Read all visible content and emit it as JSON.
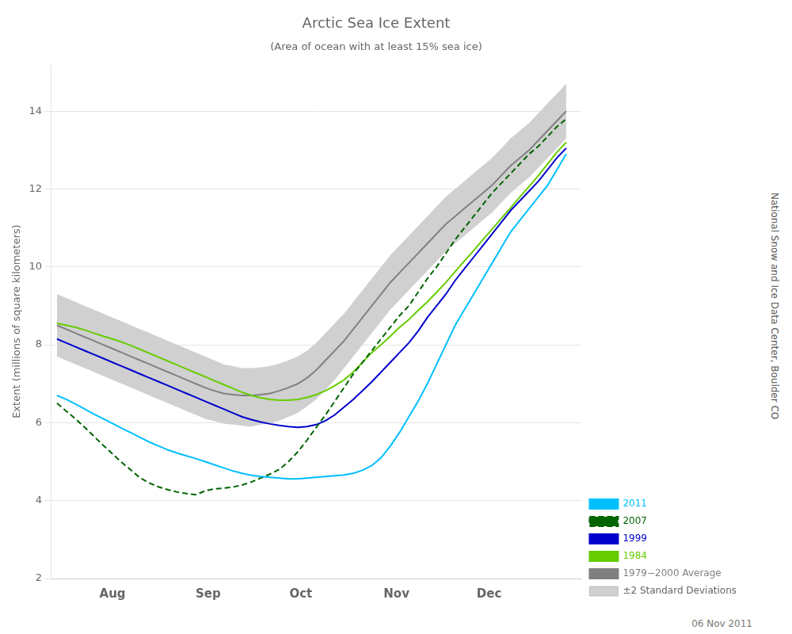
{
  "chart_data": {
    "type": "line",
    "title": "Arctic Sea Ice Extent",
    "subtitle": "(Area of ocean with at least 15% sea ice)",
    "ylabel": "Extent (millions of square kilometers)",
    "annotations": [
      "National Snow and Ice Data Center, Boulder CO",
      "06 Nov 2011"
    ],
    "x": [
      0,
      3,
      6,
      9,
      12,
      15,
      18,
      21,
      24,
      27,
      30,
      33,
      36,
      39,
      42,
      45,
      48,
      51,
      54,
      57,
      60,
      63,
      66,
      69,
      72,
      75,
      78,
      81,
      84,
      87,
      90,
      93,
      96,
      99,
      102,
      105,
      108,
      111,
      114,
      117,
      120,
      123,
      126,
      129,
      132,
      135,
      138,
      141,
      144,
      147,
      150,
      153,
      156,
      159,
      162,
      165
    ],
    "xlim": [
      -2,
      170
    ],
    "xticks": [
      {
        "value": 18,
        "label": "Aug"
      },
      {
        "value": 49,
        "label": "Sep"
      },
      {
        "value": 79,
        "label": "Oct"
      },
      {
        "value": 110,
        "label": "Nov"
      },
      {
        "value": 140,
        "label": "Dec"
      }
    ],
    "ylim": [
      2,
      15.2
    ],
    "yticks": [
      2,
      4,
      6,
      8,
      10,
      12,
      14
    ],
    "grid": "y",
    "legend": "lower right",
    "series": [
      {
        "name": "2011",
        "color": "#00bfff",
        "line_style": "solid",
        "values": [
          6.7,
          6.6,
          6.48,
          6.35,
          6.22,
          6.1,
          5.98,
          5.86,
          5.74,
          5.62,
          5.5,
          5.4,
          5.3,
          5.22,
          5.15,
          5.08,
          5.0,
          4.92,
          4.84,
          4.76,
          4.7,
          4.65,
          4.62,
          4.6,
          4.58,
          4.56,
          4.56,
          4.58,
          4.6,
          4.62,
          4.64,
          4.66,
          4.7,
          4.78,
          4.9,
          5.1,
          5.4,
          5.75,
          6.15,
          6.55,
          7.0,
          7.5,
          8.0,
          8.5,
          8.9,
          9.3,
          9.7,
          10.1,
          10.5,
          10.9,
          11.2,
          11.5,
          11.8,
          12.1,
          12.5,
          12.9
        ]
      },
      {
        "name": "2007",
        "color": "#006400",
        "line_style": "dashed",
        "values": [
          6.5,
          6.3,
          6.1,
          5.88,
          5.65,
          5.42,
          5.2,
          4.98,
          4.78,
          4.58,
          4.45,
          4.35,
          4.28,
          4.22,
          4.18,
          4.15,
          4.25,
          4.3,
          4.32,
          4.35,
          4.4,
          4.48,
          4.58,
          4.68,
          4.8,
          5.0,
          5.25,
          5.55,
          5.88,
          6.2,
          6.55,
          6.9,
          7.25,
          7.55,
          7.85,
          8.15,
          8.45,
          8.75,
          9.0,
          9.35,
          9.7,
          10.0,
          10.35,
          10.7,
          11.0,
          11.3,
          11.6,
          11.9,
          12.15,
          12.4,
          12.65,
          12.9,
          13.1,
          13.35,
          13.6,
          13.8
        ]
      },
      {
        "name": "1999",
        "color": "#0000cd",
        "line_style": "solid",
        "values": [
          8.15,
          8.05,
          7.95,
          7.85,
          7.75,
          7.65,
          7.55,
          7.45,
          7.35,
          7.25,
          7.15,
          7.05,
          6.95,
          6.85,
          6.75,
          6.65,
          6.55,
          6.45,
          6.35,
          6.25,
          6.15,
          6.08,
          6.02,
          5.97,
          5.93,
          5.9,
          5.88,
          5.9,
          5.95,
          6.05,
          6.2,
          6.4,
          6.6,
          6.82,
          7.05,
          7.3,
          7.55,
          7.8,
          8.05,
          8.35,
          8.7,
          9.0,
          9.3,
          9.65,
          9.95,
          10.25,
          10.55,
          10.85,
          11.15,
          11.45,
          11.7,
          11.95,
          12.2,
          12.5,
          12.8,
          13.05
        ]
      },
      {
        "name": "1984",
        "color": "#66cc00",
        "line_style": "solid",
        "values": [
          8.55,
          8.5,
          8.45,
          8.38,
          8.3,
          8.22,
          8.15,
          8.07,
          7.98,
          7.88,
          7.78,
          7.68,
          7.58,
          7.48,
          7.38,
          7.28,
          7.18,
          7.08,
          6.98,
          6.88,
          6.78,
          6.7,
          6.64,
          6.6,
          6.58,
          6.58,
          6.6,
          6.65,
          6.72,
          6.82,
          6.95,
          7.1,
          7.3,
          7.55,
          7.8,
          8.0,
          8.22,
          8.45,
          8.65,
          8.88,
          9.1,
          9.35,
          9.6,
          9.88,
          10.15,
          10.42,
          10.7,
          10.97,
          11.25,
          11.52,
          11.8,
          12.07,
          12.35,
          12.65,
          12.95,
          13.2
        ]
      },
      {
        "name": "1979−2000 Average",
        "color": "#808080",
        "line_style": "solid",
        "values": [
          8.5,
          8.4,
          8.3,
          8.2,
          8.1,
          8.0,
          7.9,
          7.8,
          7.7,
          7.6,
          7.5,
          7.4,
          7.3,
          7.2,
          7.1,
          7.0,
          6.9,
          6.82,
          6.75,
          6.72,
          6.7,
          6.7,
          6.72,
          6.75,
          6.82,
          6.9,
          7.0,
          7.15,
          7.35,
          7.6,
          7.85,
          8.1,
          8.4,
          8.7,
          9.0,
          9.3,
          9.6,
          9.85,
          10.1,
          10.35,
          10.6,
          10.85,
          11.1,
          11.3,
          11.5,
          11.7,
          11.9,
          12.1,
          12.35,
          12.6,
          12.8,
          13.0,
          13.25,
          13.5,
          13.75,
          14.0
        ]
      },
      {
        "name": "±2 Standard Deviations",
        "type": "area",
        "color": "#d0d0d0",
        "lower": [
          7.7,
          7.6,
          7.5,
          7.4,
          7.3,
          7.2,
          7.1,
          7.0,
          6.9,
          6.8,
          6.7,
          6.6,
          6.5,
          6.4,
          6.3,
          6.2,
          6.1,
          6.04,
          5.98,
          5.95,
          5.92,
          5.9,
          5.95,
          5.98,
          6.05,
          6.15,
          6.25,
          6.42,
          6.6,
          6.85,
          7.1,
          7.4,
          7.7,
          8.0,
          8.3,
          8.6,
          8.9,
          9.15,
          9.4,
          9.65,
          9.9,
          10.15,
          10.4,
          10.6,
          10.8,
          11.0,
          11.2,
          11.4,
          11.65,
          11.9,
          12.1,
          12.3,
          12.55,
          12.8,
          13.05,
          13.3
        ],
        "upper": [
          9.3,
          9.2,
          9.1,
          9.0,
          8.9,
          8.8,
          8.7,
          8.6,
          8.5,
          8.4,
          8.3,
          8.2,
          8.1,
          8.0,
          7.9,
          7.8,
          7.7,
          7.6,
          7.5,
          7.45,
          7.4,
          7.4,
          7.42,
          7.45,
          7.52,
          7.6,
          7.7,
          7.85,
          8.05,
          8.3,
          8.55,
          8.8,
          9.1,
          9.4,
          9.7,
          10.0,
          10.3,
          10.55,
          10.8,
          11.05,
          11.3,
          11.55,
          11.8,
          12.0,
          12.2,
          12.4,
          12.6,
          12.8,
          13.05,
          13.3,
          13.5,
          13.7,
          13.95,
          14.2,
          14.45,
          14.7
        ]
      }
    ]
  }
}
